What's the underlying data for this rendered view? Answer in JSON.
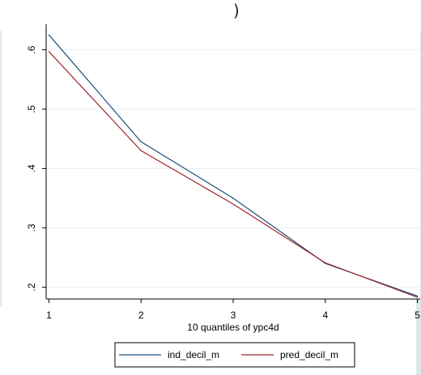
{
  "header": {
    "fragment_text": ")"
  },
  "chart_data": {
    "type": "line",
    "x": [
      1,
      2,
      3,
      4,
      5
    ],
    "series": [
      {
        "name": "ind_decil_m",
        "color": "#1f4e79",
        "values": [
          0.625,
          0.445,
          0.35,
          0.24,
          0.185
        ]
      },
      {
        "name": "pred_decil_m",
        "color": "#a0262d",
        "values": [
          0.597,
          0.43,
          0.34,
          0.241,
          0.183
        ]
      }
    ],
    "xlabel": "10 quantiles of ypc4d",
    "ylabel": "",
    "xlim": [
      0.97,
      5.03
    ],
    "ylim": [
      0.18,
      0.643
    ],
    "xticks": [
      "1",
      "2",
      "3",
      "4",
      "5"
    ],
    "yticks": [
      ".2",
      ".3",
      ".4",
      ".5",
      ".6"
    ],
    "ytick_values": [
      0.2,
      0.3,
      0.4,
      0.5,
      0.6
    ],
    "grid": true,
    "legend_position": "bottom",
    "colors": {
      "background": "#ffffff",
      "outer_frame": "#dde6ec",
      "grid": "#eaf0f3"
    }
  }
}
